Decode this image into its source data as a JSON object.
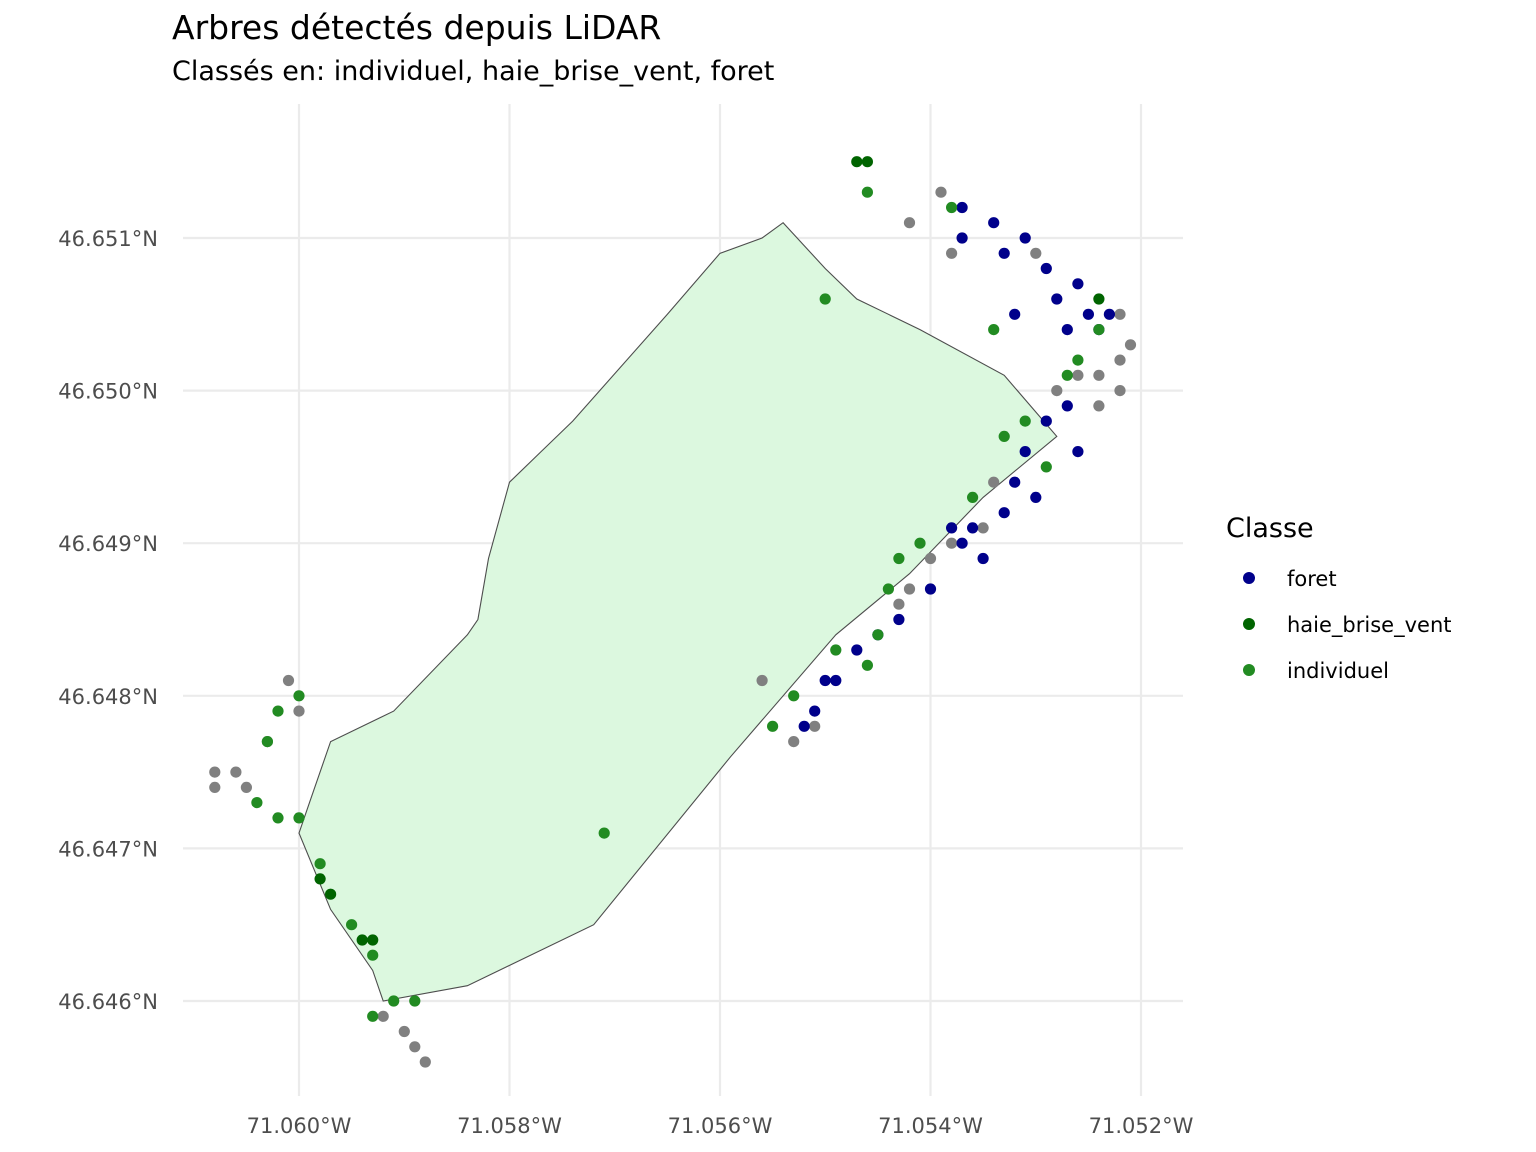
{
  "title": "Arbres détectés depuis LiDAR",
  "subtitle": "Classés en: individuel, haie_brise_vent, foret",
  "chart_data": {
    "type": "scatter",
    "title": "Arbres détectés depuis LiDAR",
    "subtitle": "Classés en: individuel, haie_brise_vent, foret",
    "xlabel": "",
    "ylabel": "",
    "xlim": [
      -71.0612,
      -71.0516
    ],
    "ylim": [
      46.6454,
      46.6519
    ],
    "x_ticks": [
      -71.06,
      -71.058,
      -71.056,
      -71.054,
      -71.052
    ],
    "x_tick_labels": [
      "71.060°W",
      "71.058°W",
      "71.056°W",
      "71.054°W",
      "71.052°W"
    ],
    "y_ticks": [
      46.646,
      46.647,
      46.648,
      46.649,
      46.65,
      46.651
    ],
    "y_tick_labels": [
      "46.646°N",
      "46.647°N",
      "46.648°N",
      "46.649°N",
      "46.650°N",
      "46.651°N"
    ],
    "grid": true,
    "legend": {
      "title": "Classe",
      "placement": "right",
      "entries": [
        {
          "label": "foret",
          "color": "#00008B"
        },
        {
          "label": "haie_brise_vent",
          "color": "#006400"
        },
        {
          "label": "individuel",
          "color": "#228B22"
        }
      ]
    },
    "unclassified_color": "#808080",
    "polygon": {
      "fill": "#DCF8DF",
      "stroke": "#4D4D4D",
      "points": [
        [
          -71.0599,
          46.6473
        ],
        [
          -71.0597,
          46.6477
        ],
        [
          -71.0591,
          46.6479
        ],
        [
          -71.0584,
          46.6484
        ],
        [
          -71.0583,
          46.6485
        ],
        [
          -71.0582,
          46.6489
        ],
        [
          -71.058,
          46.6494
        ],
        [
          -71.0577,
          46.6496
        ],
        [
          -71.0574,
          46.6498
        ],
        [
          -71.0565,
          46.6505
        ],
        [
          -71.056,
          46.6509
        ],
        [
          -71.0556,
          46.651
        ],
        [
          -71.0554,
          46.6511
        ],
        [
          -71.055,
          46.6508
        ],
        [
          -71.0547,
          46.6506
        ],
        [
          -71.0541,
          46.6504
        ],
        [
          -71.0533,
          46.6501
        ],
        [
          -71.0528,
          46.6497
        ],
        [
          -71.0535,
          46.6493
        ],
        [
          -71.0542,
          46.6488
        ],
        [
          -71.0549,
          46.6484
        ],
        [
          -71.0559,
          46.6476
        ],
        [
          -71.0572,
          46.6465
        ],
        [
          -71.0584,
          46.6461
        ],
        [
          -71.0592,
          46.646
        ],
        [
          -71.0593,
          46.6462
        ],
        [
          -71.0597,
          46.6466
        ],
        [
          -71.06,
          46.6471
        ]
      ]
    },
    "series": [
      {
        "name": "foret",
        "color": "#00008B",
        "points": [
          [
            -71.0537,
            46.6512
          ],
          [
            -71.0534,
            46.6511
          ],
          [
            -71.0531,
            46.651
          ],
          [
            -71.0529,
            46.6508
          ],
          [
            -71.0526,
            46.6507
          ],
          [
            -71.0523,
            46.6505
          ],
          [
            -71.0527,
            46.6504
          ],
          [
            -71.0532,
            46.6505
          ],
          [
            -71.0529,
            46.6498
          ],
          [
            -71.0526,
            46.6496
          ],
          [
            -71.0532,
            46.6494
          ],
          [
            -71.053,
            46.6493
          ],
          [
            -71.0536,
            46.6491
          ],
          [
            -71.0535,
            46.6489
          ],
          [
            -71.054,
            46.6487
          ],
          [
            -71.0545,
            46.6484
          ],
          [
            -71.0549,
            46.6481
          ],
          [
            -71.0552,
            46.6478
          ],
          [
            -71.0537,
            46.651
          ],
          [
            -71.0533,
            46.6509
          ],
          [
            -71.0528,
            46.6506
          ],
          [
            -71.0524,
            46.6504
          ],
          [
            -71.0527,
            46.6499
          ],
          [
            -71.0531,
            46.6496
          ],
          [
            -71.0533,
            46.6492
          ],
          [
            -71.0537,
            46.649
          ],
          [
            -71.0543,
            46.6485
          ],
          [
            -71.0547,
            46.6483
          ],
          [
            -71.0551,
            46.6479
          ],
          [
            -71.055,
            46.6481
          ],
          [
            -71.0538,
            46.6491
          ],
          [
            -71.0525,
            46.6505
          ]
        ]
      },
      {
        "name": "haie_brise_vent",
        "color": "#006400",
        "points": [
          [
            -71.0547,
            46.6515
          ],
          [
            -71.0546,
            46.6515
          ],
          [
            -71.0524,
            46.6506
          ],
          [
            -71.0598,
            46.6468
          ],
          [
            -71.0597,
            46.6467
          ],
          [
            -71.0594,
            46.6464
          ],
          [
            -71.0593,
            46.6464
          ]
        ]
      },
      {
        "name": "individuel",
        "color": "#228B22",
        "points": [
          [
            -71.055,
            46.6506
          ],
          [
            -71.0571,
            46.6471
          ],
          [
            -71.0546,
            46.6513
          ],
          [
            -71.0538,
            46.6512
          ],
          [
            -71.0524,
            46.6504
          ],
          [
            -71.0526,
            46.6502
          ],
          [
            -71.0531,
            46.6498
          ],
          [
            -71.0533,
            46.6497
          ],
          [
            -71.0536,
            46.6493
          ],
          [
            -71.0541,
            46.649
          ],
          [
            -71.0543,
            46.6489
          ],
          [
            -71.0545,
            46.6484
          ],
          [
            -71.0549,
            46.6483
          ],
          [
            -71.0553,
            46.648
          ],
          [
            -71.0555,
            46.6478
          ],
          [
            -71.06,
            46.648
          ],
          [
            -71.0602,
            46.6479
          ],
          [
            -71.0603,
            46.6477
          ],
          [
            -71.0604,
            46.6473
          ],
          [
            -71.0602,
            46.6472
          ],
          [
            -71.06,
            46.6472
          ],
          [
            -71.0598,
            46.6469
          ],
          [
            -71.0595,
            46.6465
          ],
          [
            -71.0593,
            46.6463
          ],
          [
            -71.0591,
            46.646
          ],
          [
            -71.0593,
            46.6459
          ],
          [
            -71.0589,
            46.646
          ],
          [
            -71.0534,
            46.6504
          ],
          [
            -71.0527,
            46.6501
          ],
          [
            -71.0529,
            46.6495
          ],
          [
            -71.0546,
            46.6482
          ],
          [
            -71.0544,
            46.6487
          ]
        ]
      },
      {
        "name": "",
        "color": "#808080",
        "points": [
          [
            -71.0539,
            46.6513
          ],
          [
            -71.0542,
            46.6511
          ],
          [
            -71.0538,
            46.6509
          ],
          [
            -71.053,
            46.6509
          ],
          [
            -71.0522,
            46.6505
          ],
          [
            -71.0521,
            46.6503
          ],
          [
            -71.0522,
            46.6502
          ],
          [
            -71.0524,
            46.6501
          ],
          [
            -71.0526,
            46.6501
          ],
          [
            -71.0528,
            46.65
          ],
          [
            -71.0522,
            46.65
          ],
          [
            -71.0524,
            46.6499
          ],
          [
            -71.0534,
            46.6494
          ],
          [
            -71.0535,
            46.6491
          ],
          [
            -71.0538,
            46.649
          ],
          [
            -71.054,
            46.6489
          ],
          [
            -71.0542,
            46.6487
          ],
          [
            -71.0543,
            46.6486
          ],
          [
            -71.0551,
            46.6478
          ],
          [
            -71.0553,
            46.6477
          ],
          [
            -71.0556,
            46.6481
          ],
          [
            -71.0601,
            46.6481
          ],
          [
            -71.06,
            46.6479
          ],
          [
            -71.0603,
            46.6477
          ],
          [
            -71.0606,
            46.6475
          ],
          [
            -71.0608,
            46.6475
          ],
          [
            -71.0605,
            46.6474
          ],
          [
            -71.0608,
            46.6474
          ],
          [
            -71.0592,
            46.6459
          ],
          [
            -71.059,
            46.6458
          ],
          [
            -71.0589,
            46.6457
          ],
          [
            -71.0588,
            46.6456
          ]
        ]
      }
    ]
  }
}
